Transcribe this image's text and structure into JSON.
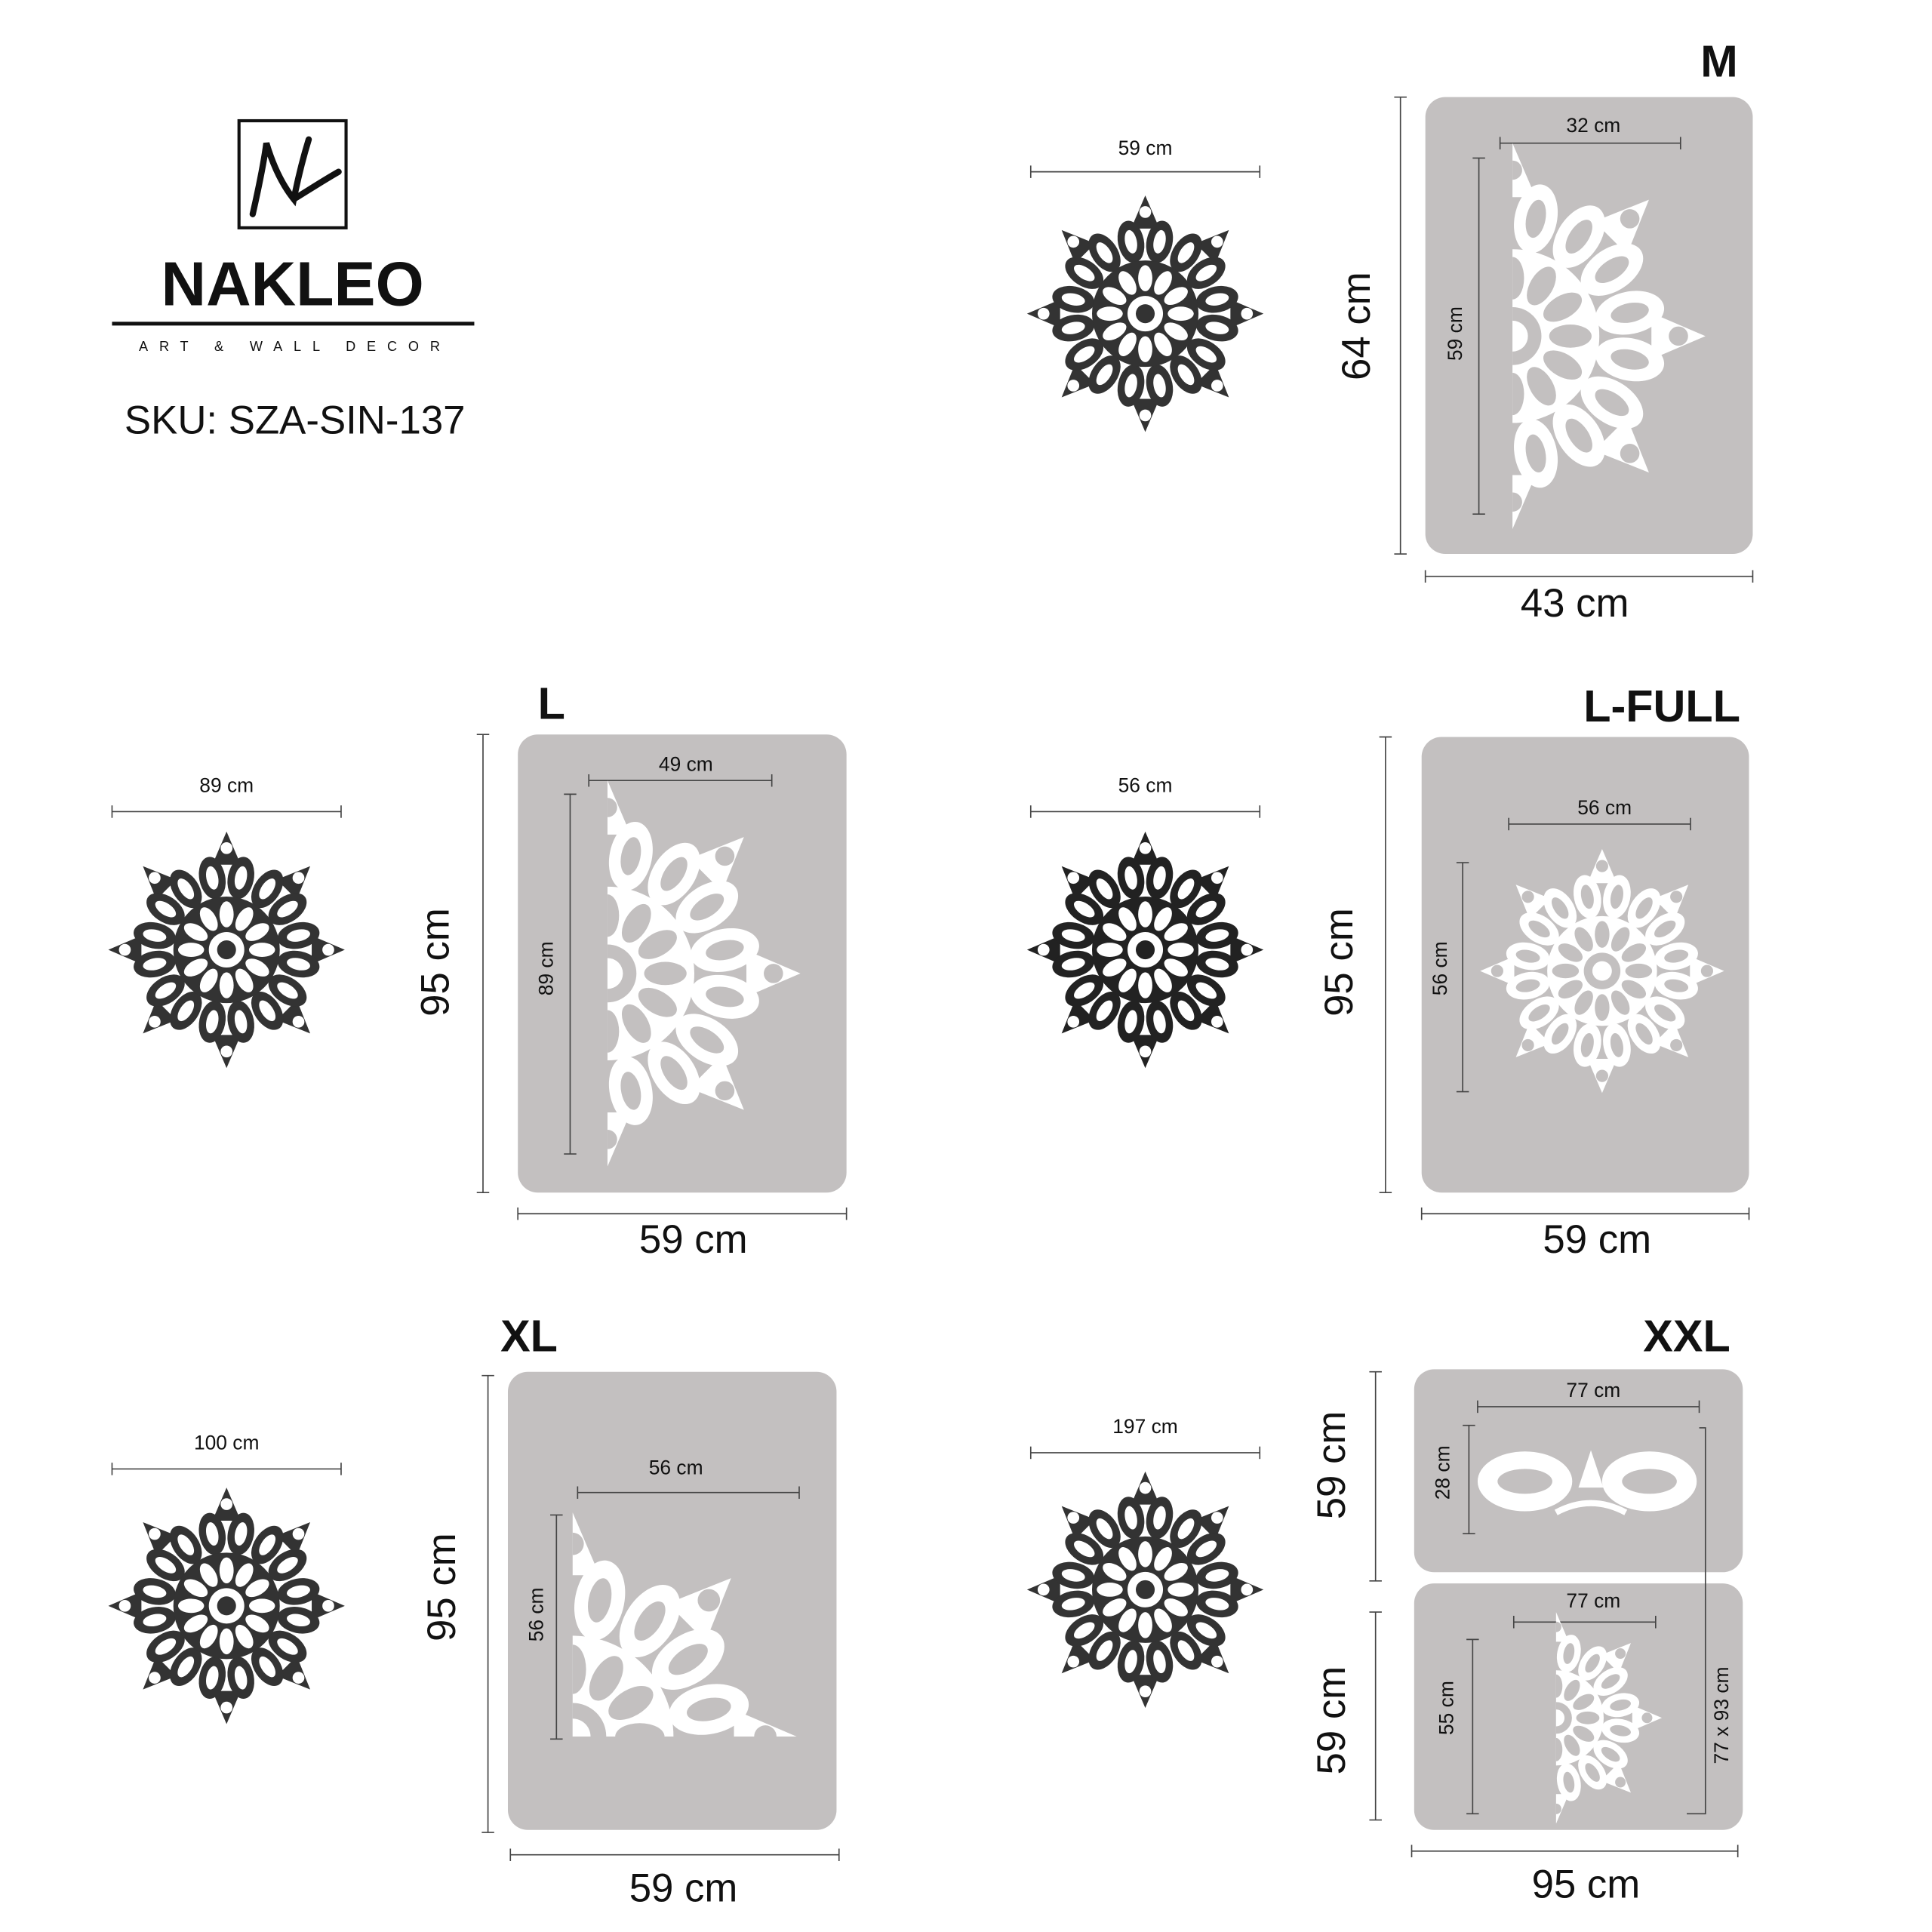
{
  "brand": {
    "name": "NAKLEO",
    "tagline": "ART & WALL DECOR"
  },
  "sku": "SKU: SZA-SIN-137",
  "sizes": [
    {
      "label": "M",
      "preview_width": "59 cm",
      "sheet_height": "64 cm",
      "sheet_width": "43 cm",
      "pattern_width": "32 cm",
      "pattern_height": "59 cm"
    },
    {
      "label": "L",
      "preview_width": "89 cm",
      "sheet_height": "95 cm",
      "sheet_width": "59 cm",
      "pattern_width": "49 cm",
      "pattern_height": "89 cm"
    },
    {
      "label": "L-FULL",
      "preview_width": "56 cm",
      "sheet_height": "95 cm",
      "sheet_width": "59 cm",
      "pattern_width": "56 cm",
      "pattern_height": "56 cm"
    },
    {
      "label": "XL",
      "preview_width": "100 cm",
      "sheet_height": "95 cm",
      "sheet_width": "59 cm",
      "pattern_width": "56 cm",
      "pattern_height": "56 cm"
    },
    {
      "label": "XXL",
      "preview_width": "197 cm",
      "sheet_width": "95 cm",
      "sheets": [
        {
          "height": "59 cm",
          "pattern_width": "77 cm",
          "pattern_height": "28 cm"
        },
        {
          "height": "59 cm",
          "pattern_width": "77 cm",
          "pattern_height": "55 cm"
        }
      ],
      "total": "77 x 93 cm"
    }
  ]
}
